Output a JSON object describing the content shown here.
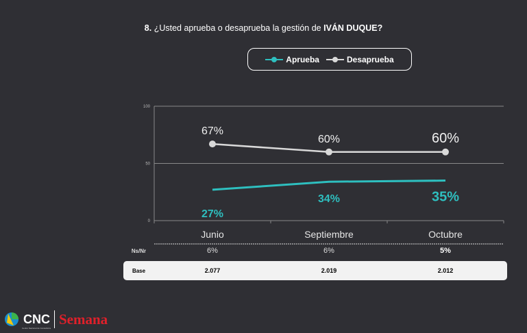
{
  "title": {
    "prefix": "8.",
    "question": "¿Usted aprueba o desaprueba la gestión de",
    "subject": "IVÁN DUQUE?"
  },
  "chart_data": {
    "type": "line",
    "categories": [
      "Junio",
      "Septiembre",
      "Octubre"
    ],
    "ylim": [
      0,
      100
    ],
    "yticks": [
      "0",
      "50",
      "100"
    ],
    "series": [
      {
        "name": "Aprueba",
        "values": [
          27,
          34,
          35
        ],
        "labels": [
          "27%",
          "34%",
          "35%"
        ],
        "color": "#2ebfbf"
      },
      {
        "name": "Desaprueba",
        "values": [
          67,
          60,
          60
        ],
        "labels": [
          "67%",
          "60%",
          "60%"
        ],
        "color": "#d9d9d9"
      }
    ],
    "legend": "top-center"
  },
  "table": {
    "nsnr": {
      "label": "Ns/Nr",
      "values": [
        "6%",
        "6%",
        "5%"
      ]
    },
    "base": {
      "label": "Base",
      "values": [
        "2.077",
        "2.019",
        "2.012"
      ]
    }
  },
  "logos": {
    "cnc": "CNC",
    "cnc_sub": "Centro Nacional de Consultoría",
    "semana": "Semana"
  }
}
